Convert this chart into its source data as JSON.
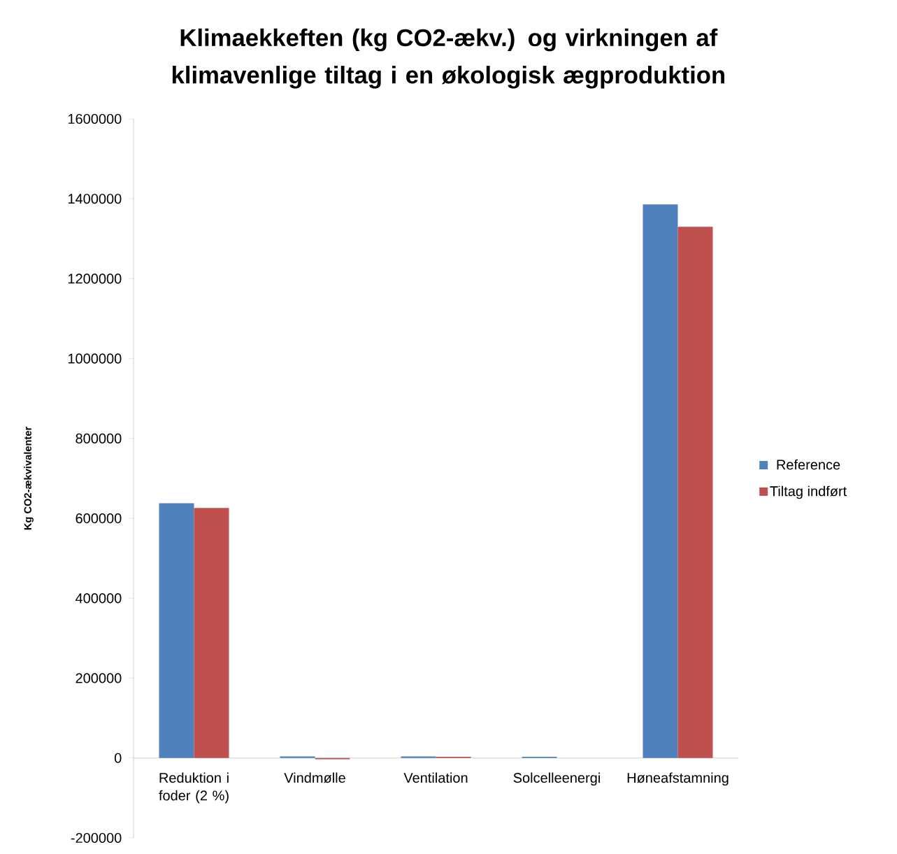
{
  "chart_data": {
    "type": "bar",
    "title": "Klimaekkeften (kg CO2-ækv.) og virkningen af klimavenlige tiltag i en økologisk ægproduktion",
    "ylabel": "Kg CO2-ækvivalenter",
    "categories": [
      "Reduktion i foder (2 %)",
      "Vindmølle",
      "Ventilation",
      "Solcelleenergi",
      "Høneafstamning"
    ],
    "series": [
      {
        "name": "Reference",
        "color": "#4f81bd",
        "values": [
          638000,
          4000,
          4000,
          3000,
          1386000
        ]
      },
      {
        "name": "Tiltag indført",
        "color": "#c0504d",
        "values": [
          626000,
          -3000,
          3000,
          0,
          1330000
        ]
      }
    ],
    "ylim": [
      -200000,
      1600000
    ],
    "yticks": [
      -200000,
      0,
      200000,
      400000,
      600000,
      800000,
      1000000,
      1200000,
      1400000,
      1600000
    ],
    "grid": false,
    "legend": "right"
  }
}
